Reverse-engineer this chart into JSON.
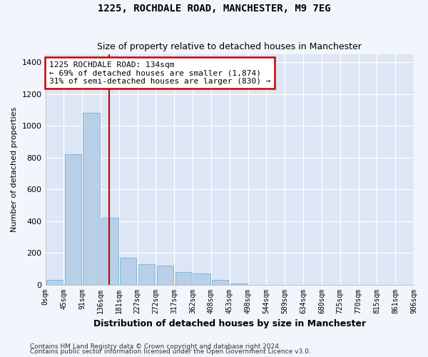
{
  "title1": "1225, ROCHDALE ROAD, MANCHESTER, M9 7EG",
  "title2": "Size of property relative to detached houses in Manchester",
  "xlabel": "Distribution of detached houses by size in Manchester",
  "ylabel": "Number of detached properties",
  "bar_values": [
    30,
    820,
    1080,
    420,
    170,
    130,
    120,
    80,
    70,
    30,
    5,
    0,
    0,
    0,
    0,
    0,
    0,
    0,
    0,
    0
  ],
  "bar_labels": [
    "0sqm",
    "45sqm",
    "91sqm",
    "136sqm",
    "181sqm",
    "227sqm",
    "272sqm",
    "317sqm",
    "362sqm",
    "408sqm",
    "453sqm",
    "498sqm",
    "544sqm",
    "589sqm",
    "634sqm",
    "680sqm",
    "725sqm",
    "770sqm",
    "815sqm",
    "861sqm",
    "906sqm"
  ],
  "bar_color": "#b8cfe8",
  "bar_edge_color": "#7aafd4",
  "background_color": "#dce6f5",
  "grid_color": "#ffffff",
  "vline_color": "#cc0000",
  "annotation_text": "1225 ROCHDALE ROAD: 134sqm\n← 69% of detached houses are smaller (1,874)\n31% of semi-detached houses are larger (830) →",
  "annotation_box_color": "#cc0000",
  "ylim": [
    0,
    1450
  ],
  "yticks": [
    0,
    200,
    400,
    600,
    800,
    1000,
    1200,
    1400
  ],
  "footer1": "Contains HM Land Registry data © Crown copyright and database right 2024.",
  "footer2": "Contains public sector information licensed under the Open Government Licence v3.0.",
  "fig_bg": "#f2f5fb"
}
